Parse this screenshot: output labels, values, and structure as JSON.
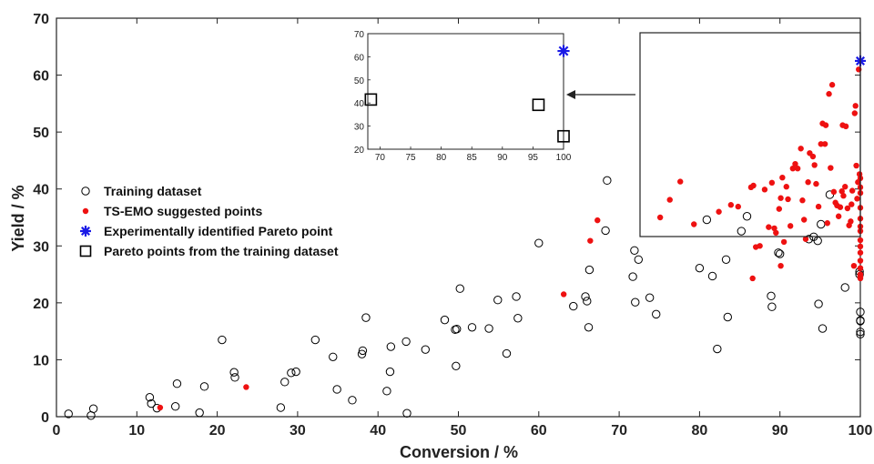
{
  "chart_data": {
    "type": "scatter",
    "xlabel": "Conversion / %",
    "ylabel": "Yield / %",
    "xlim": [
      0,
      100
    ],
    "ylim": [
      0,
      70
    ],
    "xticks": [
      0,
      10,
      20,
      30,
      40,
      50,
      60,
      70,
      80,
      90,
      100
    ],
    "yticks": [
      0,
      10,
      20,
      30,
      40,
      50,
      60,
      70
    ],
    "grid": false,
    "legend_position": "left",
    "series": [
      {
        "name": "Training dataset",
        "marker": "open-circle",
        "color": "#000000",
        "points": [
          [
            1.5,
            0.5
          ],
          [
            4.3,
            0.2
          ],
          [
            4.6,
            1.4
          ],
          [
            11.6,
            3.4
          ],
          [
            11.8,
            2.3
          ],
          [
            12.5,
            1.5
          ],
          [
            14.8,
            1.8
          ],
          [
            15.0,
            5.8
          ],
          [
            17.8,
            0.7
          ],
          [
            18.4,
            5.3
          ],
          [
            20.6,
            13.5
          ],
          [
            22.1,
            7.8
          ],
          [
            22.2,
            6.9
          ],
          [
            27.9,
            1.6
          ],
          [
            28.4,
            6.1
          ],
          [
            29.2,
            7.7
          ],
          [
            29.8,
            7.9
          ],
          [
            32.2,
            13.5
          ],
          [
            34.4,
            10.5
          ],
          [
            34.9,
            4.8
          ],
          [
            36.8,
            2.9
          ],
          [
            38.0,
            11.0
          ],
          [
            38.1,
            11.6
          ],
          [
            38.5,
            17.4
          ],
          [
            41.1,
            4.5
          ],
          [
            41.5,
            7.9
          ],
          [
            41.6,
            12.3
          ],
          [
            43.5,
            13.2
          ],
          [
            43.6,
            0.6
          ],
          [
            45.9,
            11.8
          ],
          [
            48.3,
            17.0
          ],
          [
            49.6,
            15.3
          ],
          [
            49.7,
            8.9
          ],
          [
            49.8,
            15.4
          ],
          [
            50.2,
            22.5
          ],
          [
            51.7,
            15.7
          ],
          [
            53.8,
            15.5
          ],
          [
            54.9,
            20.5
          ],
          [
            56.0,
            11.1
          ],
          [
            57.2,
            21.1
          ],
          [
            57.4,
            17.3
          ],
          [
            60.0,
            30.5
          ],
          [
            64.3,
            19.4
          ],
          [
            65.8,
            21.1
          ],
          [
            66.0,
            20.3
          ],
          [
            66.2,
            15.7
          ],
          [
            66.3,
            25.8
          ],
          [
            68.3,
            32.7
          ],
          [
            68.5,
            41.5
          ],
          [
            71.7,
            24.6
          ],
          [
            71.9,
            29.2
          ],
          [
            72.0,
            20.1
          ],
          [
            72.4,
            27.6
          ],
          [
            73.8,
            20.9
          ],
          [
            74.6,
            18.0
          ],
          [
            80.0,
            26.1
          ],
          [
            80.9,
            34.6
          ],
          [
            81.6,
            24.7
          ],
          [
            82.2,
            11.9
          ],
          [
            83.3,
            27.6
          ],
          [
            83.5,
            17.5
          ],
          [
            85.2,
            32.6
          ],
          [
            85.9,
            35.2
          ],
          [
            88.9,
            21.2
          ],
          [
            89.0,
            19.3
          ],
          [
            89.8,
            28.8
          ],
          [
            90.0,
            28.6
          ],
          [
            93.6,
            31.2
          ],
          [
            94.2,
            31.6
          ],
          [
            94.7,
            30.9
          ],
          [
            94.8,
            19.8
          ],
          [
            95.1,
            33.8
          ],
          [
            95.3,
            15.5
          ],
          [
            96.2,
            39.0
          ],
          [
            98.1,
            22.7
          ],
          [
            99.9,
            25.5
          ],
          [
            99.9,
            25.0
          ],
          [
            100.0,
            18.4
          ],
          [
            100.0,
            16.9
          ],
          [
            100.0,
            14.9
          ],
          [
            100.0,
            14.5
          ],
          [
            100.0,
            16.8
          ]
        ]
      },
      {
        "name": "TS-EMO suggested points",
        "marker": "filled-dot",
        "color": "#ee1111",
        "points": [
          [
            12.9,
            1.6
          ],
          [
            23.6,
            5.2
          ],
          [
            63.1,
            21.5
          ],
          [
            66.4,
            30.9
          ],
          [
            67.3,
            34.5
          ],
          [
            75.1,
            35.0
          ],
          [
            76.3,
            38.1
          ],
          [
            77.6,
            41.3
          ],
          [
            79.3,
            33.8
          ],
          [
            82.4,
            36.0
          ],
          [
            83.9,
            37.2
          ],
          [
            84.8,
            36.9
          ],
          [
            86.4,
            40.3
          ],
          [
            86.6,
            24.3
          ],
          [
            86.7,
            40.6
          ],
          [
            87.0,
            29.8
          ],
          [
            87.5,
            30.0
          ],
          [
            88.1,
            39.9
          ],
          [
            88.6,
            33.3
          ],
          [
            89.0,
            41.1
          ],
          [
            89.3,
            33.1
          ],
          [
            89.5,
            32.3
          ],
          [
            89.9,
            36.5
          ],
          [
            90.1,
            38.4
          ],
          [
            90.1,
            26.5
          ],
          [
            90.3,
            42.0
          ],
          [
            90.5,
            30.7
          ],
          [
            90.8,
            40.4
          ],
          [
            91.0,
            38.2
          ],
          [
            91.3,
            33.5
          ],
          [
            91.6,
            43.6
          ],
          [
            91.9,
            44.4
          ],
          [
            92.2,
            43.6
          ],
          [
            92.6,
            47.1
          ],
          [
            92.8,
            38.0
          ],
          [
            93.0,
            34.6
          ],
          [
            93.2,
            31.2
          ],
          [
            93.5,
            41.2
          ],
          [
            93.7,
            46.3
          ],
          [
            94.1,
            45.7
          ],
          [
            94.3,
            44.2
          ],
          [
            94.5,
            40.9
          ],
          [
            94.8,
            36.9
          ],
          [
            95.1,
            47.9
          ],
          [
            95.3,
            51.5
          ],
          [
            95.6,
            47.9
          ],
          [
            95.7,
            51.2
          ],
          [
            95.9,
            34.0
          ],
          [
            96.1,
            56.7
          ],
          [
            96.3,
            43.7
          ],
          [
            96.5,
            58.3
          ],
          [
            96.7,
            39.5
          ],
          [
            96.9,
            37.6
          ],
          [
            97.1,
            37.1
          ],
          [
            97.3,
            35.2
          ],
          [
            97.5,
            36.8
          ],
          [
            97.7,
            39.6
          ],
          [
            97.8,
            51.2
          ],
          [
            97.9,
            38.8
          ],
          [
            98.1,
            40.4
          ],
          [
            98.2,
            51.0
          ],
          [
            98.4,
            36.6
          ],
          [
            98.6,
            33.6
          ],
          [
            98.8,
            34.3
          ],
          [
            98.9,
            37.3
          ],
          [
            99.0,
            39.7
          ],
          [
            99.2,
            26.5
          ],
          [
            99.3,
            53.3
          ],
          [
            99.4,
            54.6
          ],
          [
            99.5,
            44.1
          ],
          [
            99.6,
            38.3
          ],
          [
            99.7,
            41.2
          ],
          [
            99.8,
            61.0
          ],
          [
            99.9,
            42.6
          ],
          [
            100.0,
            41.9
          ],
          [
            100.0,
            40.3
          ],
          [
            100.0,
            39.3
          ],
          [
            100.0,
            36.7
          ],
          [
            100.0,
            34.8
          ],
          [
            100.0,
            33.4
          ],
          [
            100.0,
            32.6
          ],
          [
            100.0,
            31.0
          ],
          [
            100.0,
            29.9
          ],
          [
            100.0,
            28.8
          ],
          [
            100.0,
            27.4
          ],
          [
            100.0,
            26.1
          ],
          [
            100.0,
            25.0
          ],
          [
            100.0,
            24.6
          ],
          [
            100.0,
            24.3
          ]
        ]
      },
      {
        "name": "Experimentally identified Pareto point",
        "marker": "blue-star",
        "color": "#1a1ae6",
        "points": [
          [
            100.0,
            62.5
          ]
        ]
      },
      {
        "name": "Pareto points from the training dataset",
        "marker": "open-square",
        "color": "#000000",
        "points": []
      }
    ],
    "inset": {
      "xlim": [
        68,
        100
      ],
      "ylim": [
        20,
        70
      ],
      "xticks": [
        70,
        75,
        80,
        85,
        90,
        95,
        100
      ],
      "yticks": [
        20,
        30,
        40,
        50,
        60,
        70
      ],
      "series": [
        {
          "name": "Experimentally identified Pareto point",
          "marker": "blue-star",
          "color": "#1a1ae6",
          "points": [
            [
              100.0,
              62.5
            ]
          ]
        },
        {
          "name": "Pareto points from the training dataset",
          "marker": "open-square",
          "color": "#000000",
          "points": [
            [
              68.5,
              41.5
            ],
            [
              95.9,
              39.2
            ],
            [
              100.0,
              25.6
            ]
          ]
        }
      ]
    }
  }
}
